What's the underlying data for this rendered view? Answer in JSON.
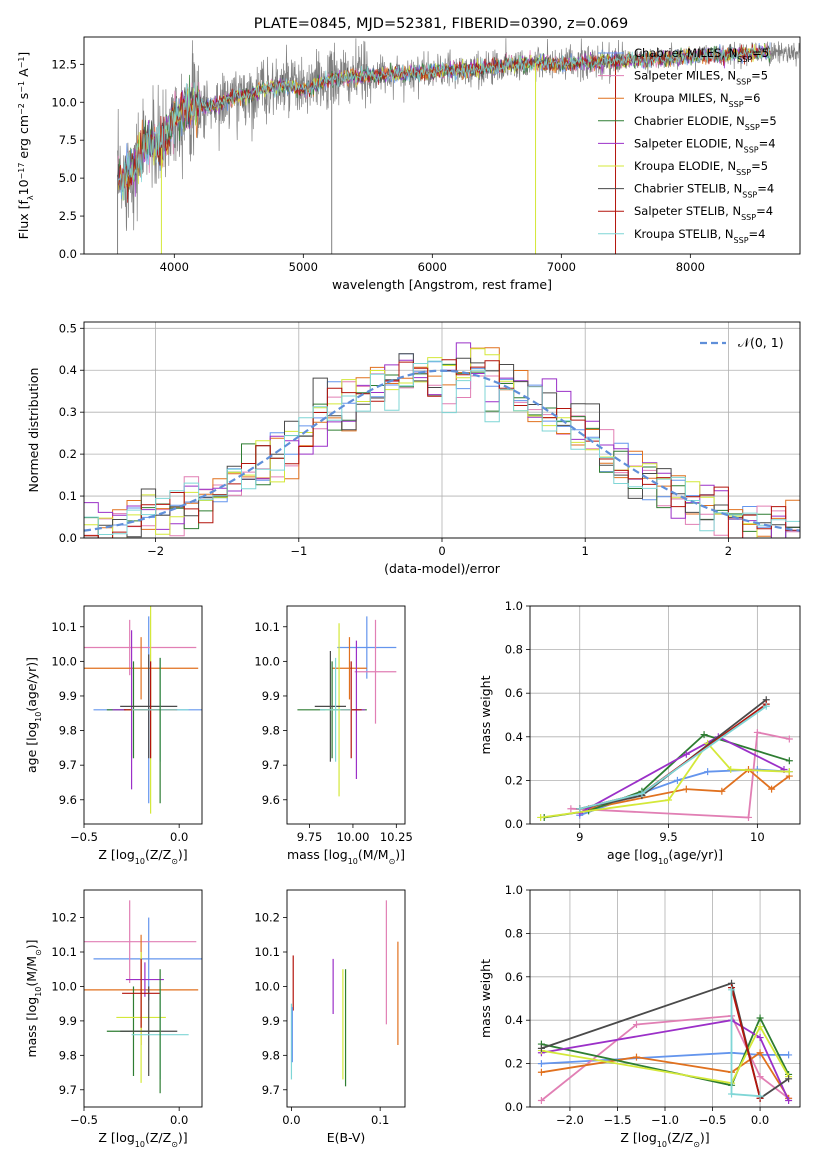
{
  "figure_title": "PLATE=0845, MJD=52381, FIBERID=0390, z=0.069",
  "colors": {
    "Chabrier MILES": "#6495ed",
    "Salpeter MILES": "#e17fb4",
    "Kroupa MILES": "#e0711f",
    "Chabrier ELODIE": "#2e7d32",
    "Salpeter ELODIE": "#9b30c8",
    "Kroupa ELODIE": "#d4e839",
    "Chabrier STELIB": "#4a4a4a",
    "Salpeter STELIB": "#b3140c",
    "Kroupa STELIB": "#7fd6d6",
    "data": "#808080",
    "normal": "#5f8fd9",
    "grid": "#b0b0b0"
  },
  "chart_data": [
    {
      "id": "spectrum",
      "type": "line",
      "xlabel": "wavelength [Angstrom, rest frame]",
      "ylabel_html": "Flux [f<tspan baseline-shift='sub' font-size='8'>λ</tspan>10<tspan baseline-shift='super' font-size='8'>−17</tspan> erg cm<tspan baseline-shift='super' font-size='8'>−2</tspan> s<tspan baseline-shift='super' font-size='8'>−1</tspan> A<tspan baseline-shift='super' font-size='8'>−1</tspan>]",
      "xlim": [
        3300,
        8850
      ],
      "ylim": [
        0,
        14.3
      ],
      "xticks": [
        4000,
        5000,
        6000,
        7000,
        8000
      ],
      "yticks": [
        0.0,
        2.5,
        5.0,
        7.5,
        10.0,
        12.5
      ],
      "grid": false,
      "legend": [
        {
          "label": "Chabrier MILES, N",
          "sub": "SSP",
          "n": "=5",
          "model": "Chabrier MILES"
        },
        {
          "label": "Salpeter MILES, N",
          "sub": "SSP",
          "n": "=5",
          "model": "Salpeter MILES"
        },
        {
          "label": "Kroupa MILES, N",
          "sub": "SSP",
          "n": "=6",
          "model": "Kroupa MILES"
        },
        {
          "label": "Chabrier ELODIE, N",
          "sub": "SSP",
          "n": "=5",
          "model": "Chabrier ELODIE"
        },
        {
          "label": "Salpeter ELODIE, N",
          "sub": "SSP",
          "n": "=4",
          "model": "Salpeter ELODIE"
        },
        {
          "label": "Kroupa ELODIE, N",
          "sub": "SSP",
          "n": "=5",
          "model": "Kroupa ELODIE"
        },
        {
          "label": "Chabrier STELIB, N",
          "sub": "SSP",
          "n": "=4",
          "model": "Chabrier STELIB"
        },
        {
          "label": "Salpeter STELIB, N",
          "sub": "SSP",
          "n": "=4",
          "model": "Salpeter STELIB"
        },
        {
          "label": "Kroupa STELIB, N",
          "sub": "SSP",
          "n": "=4",
          "model": "Kroupa STELIB"
        }
      ],
      "legend_position": "right",
      "continuum": {
        "x": [
          3550,
          3600,
          3700,
          3800,
          3900,
          4000,
          4100,
          4200,
          4300,
          4400,
          4500,
          4600,
          4700,
          4800,
          4900,
          5000,
          5200,
          5400,
          5600,
          5800,
          6000,
          6200,
          6400,
          6600,
          6800,
          7000,
          7200,
          7400,
          7600,
          7800,
          8000,
          8200,
          8400,
          8600
        ],
        "y": [
          5.2,
          4.6,
          6.0,
          7.5,
          7.0,
          9.0,
          9.6,
          9.8,
          9.7,
          10.1,
          10.4,
          10.5,
          10.9,
          11.0,
          11.1,
          10.8,
          11.5,
          11.7,
          11.8,
          11.9,
          12.0,
          12.1,
          12.2,
          12.5,
          12.6,
          12.5,
          12.6,
          12.7,
          12.8,
          12.9,
          13.0,
          13.1,
          13.2,
          13.3
        ]
      },
      "data_xrange": [
        3560,
        8850
      ],
      "model_xrange": [
        3560,
        8620
      ],
      "spikes_down": [
        {
          "x": 3560,
          "y": 0.0,
          "series": "data"
        },
        {
          "x": 3900,
          "y": 0.0,
          "series": "Kroupa ELODIE"
        },
        {
          "x": 5220,
          "y": 0.0,
          "series": "data"
        },
        {
          "x": 6800,
          "y": 0.0,
          "series": "Kroupa ELODIE"
        },
        {
          "x": 7420,
          "y": 0.0,
          "series": "Salpeter STELIB"
        }
      ]
    },
    {
      "id": "residuals",
      "type": "histogram",
      "xlabel": "(data-model)/error",
      "ylabel": "Normed distribution",
      "xlim": [
        -2.5,
        2.5
      ],
      "ylim": [
        0,
        0.515
      ],
      "xticks": [
        -2,
        -1,
        0,
        1,
        2
      ],
      "xticklabels": [
        "−2",
        "−1",
        "0",
        "1",
        "2"
      ],
      "yticks": [
        0.0,
        0.1,
        0.2,
        0.3,
        0.4,
        0.5
      ],
      "grid": true,
      "bin_width": 0.1,
      "legend": [
        {
          "label": "𝒩(0, 1)"
        }
      ],
      "legend_position": "upper right"
    },
    {
      "id": "age_vs_Z",
      "type": "errorbar",
      "xlabel": "Z [log<tspan baseline-shift='sub' font-size='8'>10</tspan>(Z/Z<tspan baseline-shift='sub' font-size='8'>⊙</tspan>)]",
      "ylabel": "age  [log<tspan baseline-shift='sub' font-size='8'>10</tspan>(age/yr)]",
      "xlim": [
        -0.5,
        0.12
      ],
      "ylim": [
        9.53,
        10.16
      ],
      "xticks": [
        -0.5,
        0.0
      ],
      "xticklabels": [
        "−0.5",
        "0.0"
      ],
      "yticks": [
        9.6,
        9.7,
        9.8,
        9.9,
        10.0,
        10.1
      ],
      "points": [
        {
          "model": "Chabrier MILES",
          "x": -0.16,
          "xerr": 0.29,
          "y": 9.86,
          "yerr": 0.27
        },
        {
          "model": "Salpeter MILES",
          "x": -0.26,
          "xerr": 0.35,
          "y": 10.04,
          "yerr": 0.08
        },
        {
          "model": "Kroupa MILES",
          "x": -0.2,
          "xerr": 0.3,
          "y": 9.98,
          "yerr": 0.09
        },
        {
          "model": "Chabrier ELODIE",
          "x": -0.24,
          "xerr": 0.14,
          "y": 9.86,
          "yerr": 0.14
        },
        {
          "model": "Salpeter ELODIE",
          "x": -0.25,
          "xerr": 0.1,
          "y": 9.86,
          "yerr": 0.23
        },
        {
          "model": "Kroupa ELODIE",
          "x": -0.15,
          "xerr": 0.13,
          "y": 9.86,
          "yerr": 0.3
        },
        {
          "model": "Chabrier STELIB",
          "x": -0.16,
          "xerr": 0.15,
          "y": 9.87,
          "yerr": 0.15
        },
        {
          "model": "Salpeter STELIB",
          "x": -0.15,
          "xerr": 0.14,
          "y": 9.86,
          "yerr": 0.14
        },
        {
          "model": "Kroupa STELIB",
          "x": -0.1,
          "xerr": 0.15,
          "y": 9.86,
          "yerr": 0.15
        },
        {
          "model": "Chabrier ELODIE",
          "x": -0.1,
          "xerr": 0.0,
          "y": 9.8,
          "yerr": 0.21
        }
      ]
    },
    {
      "id": "age_vs_mass",
      "type": "errorbar",
      "xlabel": "mass [log<tspan baseline-shift='sub' font-size='8'>10</tspan>(M/M<tspan baseline-shift='sub' font-size='8'>⊙</tspan>)]",
      "ylabel": "",
      "xlim": [
        9.62,
        10.3
      ],
      "ylim": [
        9.53,
        10.16
      ],
      "xticks": [
        9.75,
        10.0,
        10.25
      ],
      "xticklabels": [
        "9.75",
        "10.00",
        "10.25"
      ],
      "yticks": [
        9.6,
        9.7,
        9.8,
        9.9,
        10.0,
        10.1
      ],
      "points": [
        {
          "model": "Chabrier MILES",
          "x": 10.08,
          "xerr": 0.17,
          "y": 10.04,
          "yerr": 0.09
        },
        {
          "model": "Salpeter MILES",
          "x": 10.13,
          "xerr": 0.12,
          "y": 9.97,
          "yerr": 0.15
        },
        {
          "model": "Kroupa MILES",
          "x": 9.98,
          "xerr": 0.1,
          "y": 9.98,
          "yerr": 0.09
        },
        {
          "model": "Chabrier ELODIE",
          "x": 9.88,
          "xerr": 0.2,
          "y": 9.86,
          "yerr": 0.14
        },
        {
          "model": "Salpeter ELODIE",
          "x": 10.02,
          "xerr": 0.05,
          "y": 9.86,
          "yerr": 0.2
        },
        {
          "model": "Kroupa ELODIE",
          "x": 9.92,
          "xerr": 0.08,
          "y": 9.86,
          "yerr": 0.25
        },
        {
          "model": "Chabrier STELIB",
          "x": 9.87,
          "xerr": 0.09,
          "y": 9.87,
          "yerr": 0.16
        },
        {
          "model": "Salpeter STELIB",
          "x": 9.99,
          "xerr": 0.06,
          "y": 9.86,
          "yerr": 0.14
        },
        {
          "model": "Kroupa STELIB",
          "x": 9.9,
          "xerr": 0.09,
          "y": 9.86,
          "yerr": 0.15
        }
      ]
    },
    {
      "id": "weight_vs_age",
      "type": "line",
      "xlabel": "age  [log<tspan baseline-shift='sub' font-size='8'>10</tspan>(age/yr)]",
      "ylabel": "mass weight",
      "xlim": [
        8.72,
        10.24
      ],
      "ylim": [
        0,
        1.0
      ],
      "xticks": [
        9.0,
        9.5,
        10.0
      ],
      "yticks": [
        0.0,
        0.2,
        0.4,
        0.6,
        0.8,
        1.0
      ],
      "grid": true,
      "series": [
        {
          "model": "Chabrier MILES",
          "x": [
            9.0,
            9.55,
            9.72,
            10.0,
            10.18
          ],
          "y": [
            0.04,
            0.2,
            0.24,
            0.25,
            0.24
          ]
        },
        {
          "model": "Salpeter MILES",
          "x": [
            8.95,
            9.95,
            10.0,
            10.18
          ],
          "y": [
            0.07,
            0.03,
            0.42,
            0.39
          ]
        },
        {
          "model": "Kroupa MILES",
          "x": [
            9.05,
            9.6,
            9.8,
            9.95,
            10.08,
            10.18
          ],
          "y": [
            0.07,
            0.16,
            0.15,
            0.25,
            0.16,
            0.22
          ]
        },
        {
          "model": "Chabrier ELODIE",
          "x": [
            8.8,
            9.05,
            9.35,
            9.7,
            10.18
          ],
          "y": [
            0.03,
            0.06,
            0.15,
            0.41,
            0.29
          ]
        },
        {
          "model": "Salpeter ELODIE",
          "x": [
            9.0,
            9.6,
            9.78,
            10.15
          ],
          "y": [
            0.05,
            0.32,
            0.4,
            0.25
          ]
        },
        {
          "model": "Kroupa ELODIE",
          "x": [
            8.78,
            9.5,
            9.72,
            9.85,
            10.18
          ],
          "y": [
            0.03,
            0.11,
            0.37,
            0.25,
            0.24
          ]
        },
        {
          "model": "Chabrier STELIB",
          "x": [
            9.0,
            9.35,
            10.05
          ],
          "y": [
            0.07,
            0.13,
            0.57
          ]
        },
        {
          "model": "Salpeter STELIB",
          "x": [
            9.0,
            9.35,
            10.05
          ],
          "y": [
            0.07,
            0.14,
            0.55
          ]
        },
        {
          "model": "Kroupa STELIB",
          "x": [
            9.0,
            9.35,
            10.05
          ],
          "y": [
            0.07,
            0.14,
            0.54
          ]
        }
      ]
    },
    {
      "id": "mass_vs_Z",
      "type": "errorbar",
      "xlabel": "Z [log<tspan baseline-shift='sub' font-size='8'>10</tspan>(Z/Z<tspan baseline-shift='sub' font-size='8'>⊙</tspan>)]",
      "ylabel": "mass [log<tspan baseline-shift='sub' font-size='8'>10</tspan>(M/M<tspan baseline-shift='sub' font-size='8'>⊙</tspan>)]",
      "xlim": [
        -0.5,
        0.12
      ],
      "ylim": [
        9.65,
        10.28
      ],
      "xticks": [
        -0.5,
        0.0
      ],
      "xticklabels": [
        "−0.5",
        "0.0"
      ],
      "yticks": [
        9.7,
        9.8,
        9.9,
        10.0,
        10.1,
        10.2
      ],
      "points": [
        {
          "model": "Chabrier MILES",
          "x": -0.16,
          "xerr": 0.29,
          "y": 10.08,
          "yerr": 0.12
        },
        {
          "model": "Salpeter MILES",
          "x": -0.26,
          "xerr": 0.35,
          "y": 10.13,
          "yerr": 0.12
        },
        {
          "model": "Kroupa MILES",
          "x": -0.2,
          "xerr": 0.3,
          "y": 9.99,
          "yerr": 0.16
        },
        {
          "model": "Chabrier ELODIE",
          "x": -0.24,
          "xerr": 0.14,
          "y": 9.87,
          "yerr": 0.13
        },
        {
          "model": "Salpeter ELODIE",
          "x": -0.18,
          "xerr": 0.1,
          "y": 10.02,
          "yerr": 0.05
        },
        {
          "model": "Kroupa ELODIE",
          "x": -0.2,
          "xerr": 0.13,
          "y": 9.91,
          "yerr": 0.19
        },
        {
          "model": "Chabrier STELIB",
          "x": -0.16,
          "xerr": 0.15,
          "y": 9.87,
          "yerr": 0.13
        },
        {
          "model": "Salpeter STELIB",
          "x": -0.2,
          "xerr": 0.1,
          "y": 9.98,
          "yerr": 0.1
        },
        {
          "model": "Kroupa STELIB",
          "x": -0.1,
          "xerr": 0.15,
          "y": 9.86,
          "yerr": 0.13
        },
        {
          "model": "Chabrier ELODIE",
          "x": -0.1,
          "xerr": 0.0,
          "y": 9.87,
          "yerr": 0.18
        }
      ]
    },
    {
      "id": "mass_vs_ebv",
      "type": "errorbar",
      "xlabel": "E(B-V)",
      "ylabel": "",
      "xlim": [
        -0.005,
        0.128
      ],
      "ylim": [
        9.65,
        10.28
      ],
      "xticks": [
        0.0,
        0.1
      ],
      "xticklabels": [
        "0.0",
        "0.1"
      ],
      "yticks": [
        9.7,
        9.8,
        9.9,
        10.0,
        10.1,
        10.2
      ],
      "points": [
        {
          "model": "Salpeter STELIB",
          "x": 0.002,
          "xerr": 0.0,
          "y": 10.01,
          "yerr": 0.08
        },
        {
          "model": "Kroupa STELIB",
          "x": 0.0,
          "xerr": 0.0,
          "y": 9.84,
          "yerr": 0.11
        },
        {
          "model": "Chabrier MILES",
          "x": 0.001,
          "xerr": 0.0,
          "y": 9.86,
          "yerr": 0.08
        },
        {
          "model": "Salpeter ELODIE",
          "x": 0.047,
          "xerr": 0.0,
          "y": 10.0,
          "yerr": 0.08
        },
        {
          "model": "Kroupa ELODIE",
          "x": 0.058,
          "xerr": 0.0,
          "y": 9.89,
          "yerr": 0.16
        },
        {
          "model": "Chabrier ELODIE",
          "x": 0.061,
          "xerr": 0.0,
          "y": 9.88,
          "yerr": 0.17
        },
        {
          "model": "Salpeter MILES",
          "x": 0.107,
          "xerr": 0.0,
          "y": 10.07,
          "yerr": 0.18
        },
        {
          "model": "Kroupa MILES",
          "x": 0.12,
          "xerr": 0.0,
          "y": 9.98,
          "yerr": 0.15
        }
      ]
    },
    {
      "id": "weight_vs_Z",
      "type": "line",
      "xlabel": "Z [log<tspan baseline-shift='sub' font-size='8'>10</tspan>(Z/Z<tspan baseline-shift='sub' font-size='8'>⊙</tspan>)]",
      "ylabel": "mass weight",
      "xlim": [
        -2.42,
        0.42
      ],
      "ylim": [
        0,
        1.0
      ],
      "xticks": [
        -2.0,
        -1.5,
        -1.0,
        -0.5,
        0.0
      ],
      "xticklabels": [
        "−2.0",
        "−1.5",
        "−1.0",
        "−0.5",
        "0.0"
      ],
      "yticks": [
        0.0,
        0.2,
        0.4,
        0.6,
        0.8,
        1.0
      ],
      "grid": true,
      "series": [
        {
          "model": "Chabrier MILES",
          "x": [
            -2.3,
            -0.3,
            0.0,
            0.3
          ],
          "y": [
            0.2,
            0.25,
            0.24,
            0.24
          ]
        },
        {
          "model": "Salpeter MILES",
          "x": [
            -2.3,
            -1.3,
            -0.3,
            0.0,
            0.3
          ],
          "y": [
            0.03,
            0.38,
            0.42,
            0.14,
            0.04
          ]
        },
        {
          "model": "Kroupa MILES",
          "x": [
            -2.3,
            -1.3,
            -0.3,
            0.0,
            0.3
          ],
          "y": [
            0.16,
            0.23,
            0.16,
            0.25,
            0.04
          ]
        },
        {
          "model": "Chabrier ELODIE",
          "x": [
            -2.3,
            -0.3,
            0.0,
            0.3
          ],
          "y": [
            0.29,
            0.1,
            0.41,
            0.15
          ]
        },
        {
          "model": "Salpeter ELODIE",
          "x": [
            -2.3,
            -0.3,
            0.0,
            0.3
          ],
          "y": [
            0.25,
            0.4,
            0.32,
            0.03
          ]
        },
        {
          "model": "Kroupa ELODIE",
          "x": [
            -2.3,
            -0.3,
            0.0,
            0.3
          ],
          "y": [
            0.26,
            0.11,
            0.37,
            0.14
          ]
        },
        {
          "model": "Chabrier STELIB",
          "x": [
            -2.3,
            -0.3,
            0.0,
            0.3
          ],
          "y": [
            0.27,
            0.57,
            0.04,
            0.13
          ]
        },
        {
          "model": "Salpeter STELIB",
          "x": [
            -0.3,
            0.0
          ],
          "y": [
            0.55,
            0.04
          ]
        },
        {
          "model": "Kroupa STELIB",
          "x": [
            -0.3,
            -0.3,
            0.0
          ],
          "y": [
            0.54,
            0.06,
            0.05
          ]
        }
      ]
    }
  ]
}
